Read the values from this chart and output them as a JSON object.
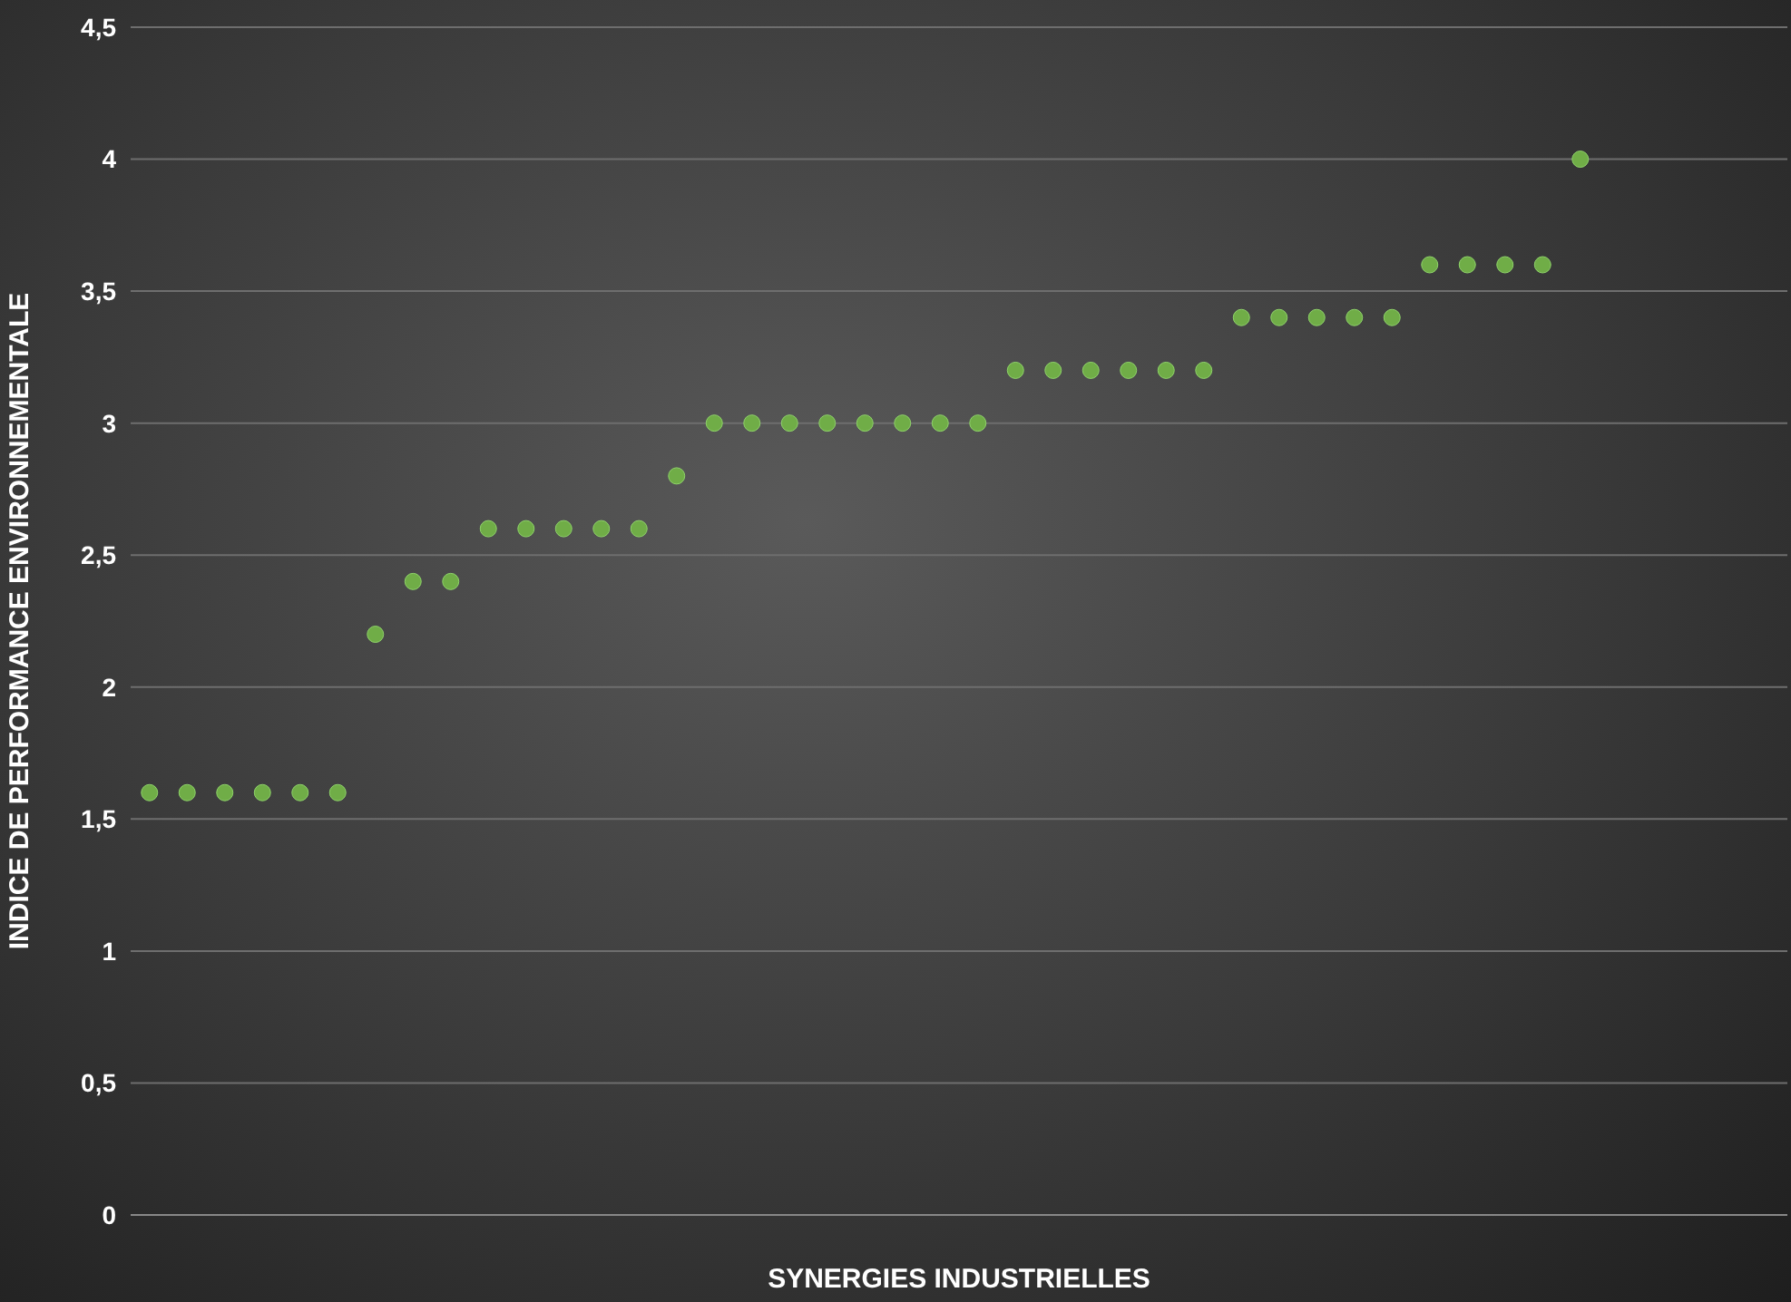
{
  "chart_data": {
    "type": "scatter",
    "xlabel": "SYNERGIES INDUSTRIELLES",
    "ylabel": "INDICE DE PERFORMANCE ENVIRONNEMENTALE",
    "categories": [
      null,
      null,
      null,
      null,
      null,
      null,
      null,
      null,
      null,
      null,
      null,
      null,
      null,
      null,
      null,
      null,
      null,
      null,
      null,
      null,
      null,
      null,
      null,
      null,
      null,
      null,
      null,
      null,
      null,
      null,
      null,
      null,
      null,
      null,
      null,
      null,
      null,
      null,
      null,
      null,
      null,
      null,
      null,
      null
    ],
    "series": [
      {
        "color": "#70ad47",
        "values": [
          1.6,
          1.6,
          1.6,
          1.6,
          1.6,
          1.6,
          2.2,
          2.4,
          2.4,
          2.6,
          2.6,
          2.6,
          2.6,
          2.6,
          2.8,
          3.0,
          3.0,
          3.0,
          3.0,
          3.0,
          3.0,
          3.0,
          3.0,
          3.2,
          3.2,
          3.2,
          3.2,
          3.2,
          3.2,
          3.4,
          3.4,
          3.4,
          3.4,
          3.4,
          3.6,
          3.6,
          3.6,
          3.6,
          4.0,
          null,
          null,
          null,
          null,
          null
        ]
      }
    ],
    "ylim": [
      0,
      4.5
    ],
    "yticks": [
      0,
      {
        "value": 0.5,
        "label": "0,5"
      },
      1,
      {
        "value": 1.5,
        "label": "1,5"
      },
      2,
      {
        "value": 2.5,
        "label": "2,5"
      },
      3,
      {
        "value": 3.5,
        "label": "3,5"
      },
      4,
      {
        "value": 4.5,
        "label": "4,5"
      }
    ],
    "grid": "y",
    "legend": false,
    "marker": "circle"
  }
}
